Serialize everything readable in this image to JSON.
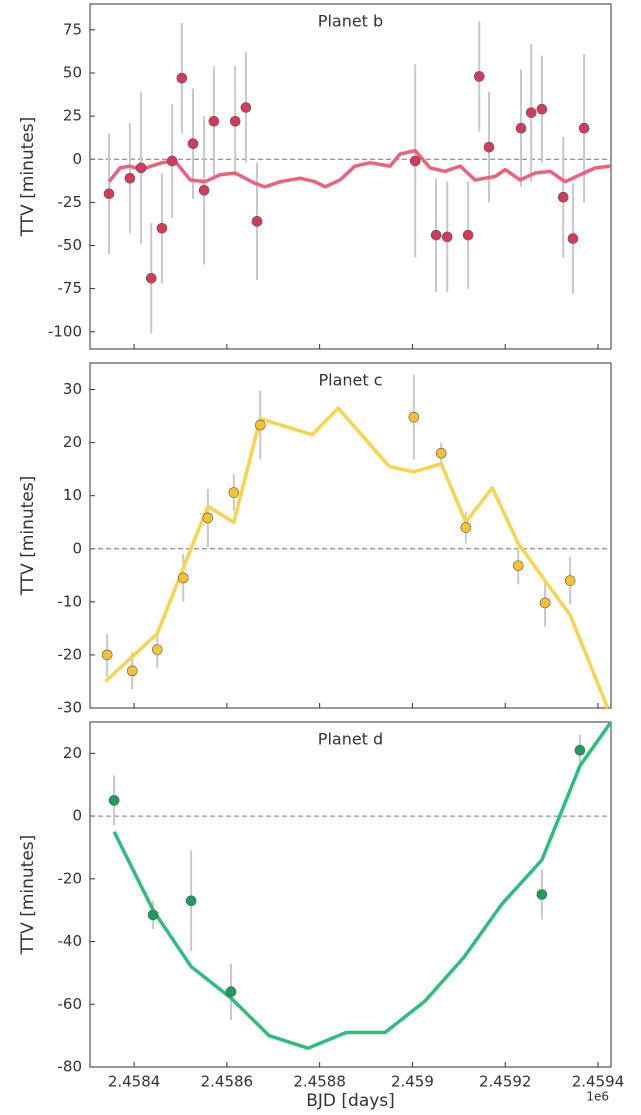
{
  "chart_data": [
    {
      "type": "scatter",
      "title": "Planet b",
      "ylabel": "TTV [minutes]",
      "xlim": [
        2.458305,
        2.459428
      ],
      "xticks": [
        2.4584,
        2.4586,
        2.4588,
        2.459,
        2.4592,
        2.4594
      ],
      "ylim": [
        -110,
        90
      ],
      "yticks": [
        -100,
        -75,
        -50,
        -25,
        0,
        25,
        50,
        75
      ],
      "reference_line": 0,
      "points": {
        "color": "#d63a5a",
        "x": [
          2.458346,
          2.458391,
          2.458415,
          2.458437,
          2.45846,
          2.458482,
          2.458503,
          2.458527,
          2.458551,
          2.458572,
          2.458618,
          2.458641,
          2.458665,
          2.459006,
          2.459051,
          2.459075,
          2.45912,
          2.459144,
          2.459165,
          2.459234,
          2.459256,
          2.459279,
          2.459325,
          2.459346,
          2.45937
        ],
        "values": [
          -20,
          -11,
          -5,
          -69,
          -40,
          -1,
          47,
          9,
          -18,
          22,
          22,
          30,
          -36,
          -1,
          -44,
          -45,
          -44,
          48,
          7,
          18,
          27,
          29,
          -22,
          -46,
          18
        ],
        "errors": [
          35,
          32,
          44,
          32,
          32,
          33,
          32,
          32,
          43,
          32,
          32,
          32,
          34,
          56,
          33,
          32,
          31,
          32,
          32,
          34,
          40,
          31,
          35,
          32,
          43
        ]
      },
      "model": {
        "color": "#f0607a",
        "x": [
          2.458346,
          2.45837,
          2.458391,
          2.458415,
          2.458437,
          2.45846,
          2.458488,
          2.458521,
          2.458553,
          2.458585,
          2.458618,
          2.458661,
          2.458682,
          2.458715,
          2.458758,
          2.45879,
          2.458812,
          2.458844,
          2.458876,
          2.458909,
          2.458952,
          2.458973,
          2.459006,
          2.459038,
          2.45907,
          2.459103,
          2.459135,
          2.459178,
          2.4592,
          2.459232,
          2.459264,
          2.459297,
          2.459329,
          2.459361,
          2.459394,
          2.459428
        ],
        "values": [
          -13,
          -5,
          -4,
          -6,
          -4,
          -2,
          -1,
          -12,
          -13,
          -9,
          -8,
          -14,
          -16,
          -13,
          -11,
          -13,
          -16,
          -12,
          -4,
          -2,
          -4,
          3,
          5,
          -5,
          -7,
          -4,
          -12,
          -10,
          -6,
          -12,
          -8,
          -7,
          -13,
          -9,
          -5,
          -4
        ]
      }
    },
    {
      "type": "scatter",
      "title": "Planet c",
      "ylabel": "TTV [minutes]",
      "xlim": [
        2.458305,
        2.459428
      ],
      "xticks": [
        2.4584,
        2.4586,
        2.4588,
        2.459,
        2.4592,
        2.4594
      ],
      "ylim": [
        -30,
        35
      ],
      "yticks": [
        -30,
        -20,
        -10,
        0,
        10,
        20,
        30
      ],
      "reference_line": 0,
      "points": {
        "color": "#f5c230",
        "x": [
          2.458342,
          2.458396,
          2.45845,
          2.458506,
          2.458559,
          2.458615,
          2.458672,
          2.459003,
          2.459062,
          2.459115,
          2.459228,
          2.459286,
          2.45934
        ],
        "values": [
          -20,
          -23,
          -19,
          -5.5,
          5.8,
          10.6,
          23.3,
          24.8,
          18,
          4,
          -3.2,
          -10.2,
          -6
        ],
        "errors": [
          4,
          3.5,
          3.5,
          4.5,
          5.5,
          3.5,
          6.5,
          8,
          2,
          3,
          3.5,
          4.5,
          4.5
        ]
      },
      "model": {
        "color": "#f7d44c",
        "x": [
          2.458338,
          2.45845,
          2.458559,
          2.458615,
          2.458672,
          2.458784,
          2.45884,
          2.45895,
          2.459003,
          2.459062,
          2.459115,
          2.459172,
          2.459228,
          2.459286,
          2.45934,
          2.459421
        ],
        "values": [
          -25,
          -16,
          8,
          5,
          24.5,
          21.5,
          26.5,
          15.5,
          14.5,
          16,
          5,
          11.5,
          1,
          -6,
          -12.5,
          -30
        ]
      }
    },
    {
      "type": "scatter",
      "title": "Planet d",
      "ylabel": "TTV [minutes]",
      "xlabel": "BJD [days]",
      "x_offset_label": "1e6",
      "xlim": [
        2.458305,
        2.459428
      ],
      "xticks": [
        2.4584,
        2.4586,
        2.4588,
        2.459,
        2.4592,
        2.4594
      ],
      "ylim": [
        -80,
        30
      ],
      "yticks": [
        -80,
        -60,
        -40,
        -20,
        0,
        20
      ],
      "reference_line": 0,
      "points": {
        "color": "#1a9e5c",
        "x": [
          2.458357,
          2.458441,
          2.458523,
          2.458609,
          2.459279,
          2.459361
        ],
        "values": [
          5,
          -31.5,
          -27,
          -56,
          -25,
          21
        ],
        "errors": [
          8,
          4.5,
          16,
          9,
          8,
          5
        ]
      },
      "model": {
        "color": "#2bbf7a",
        "x": [
          2.458357,
          2.458441,
          2.458523,
          2.458609,
          2.458691,
          2.458775,
          2.458857,
          2.458941,
          2.459027,
          2.459111,
          2.459193,
          2.459279,
          2.459361,
          2.459428
        ],
        "values": [
          -5,
          -30,
          -48,
          -58,
          -70,
          -74,
          -69,
          -69,
          -59,
          -45,
          -28,
          -14,
          16,
          30
        ]
      }
    }
  ]
}
